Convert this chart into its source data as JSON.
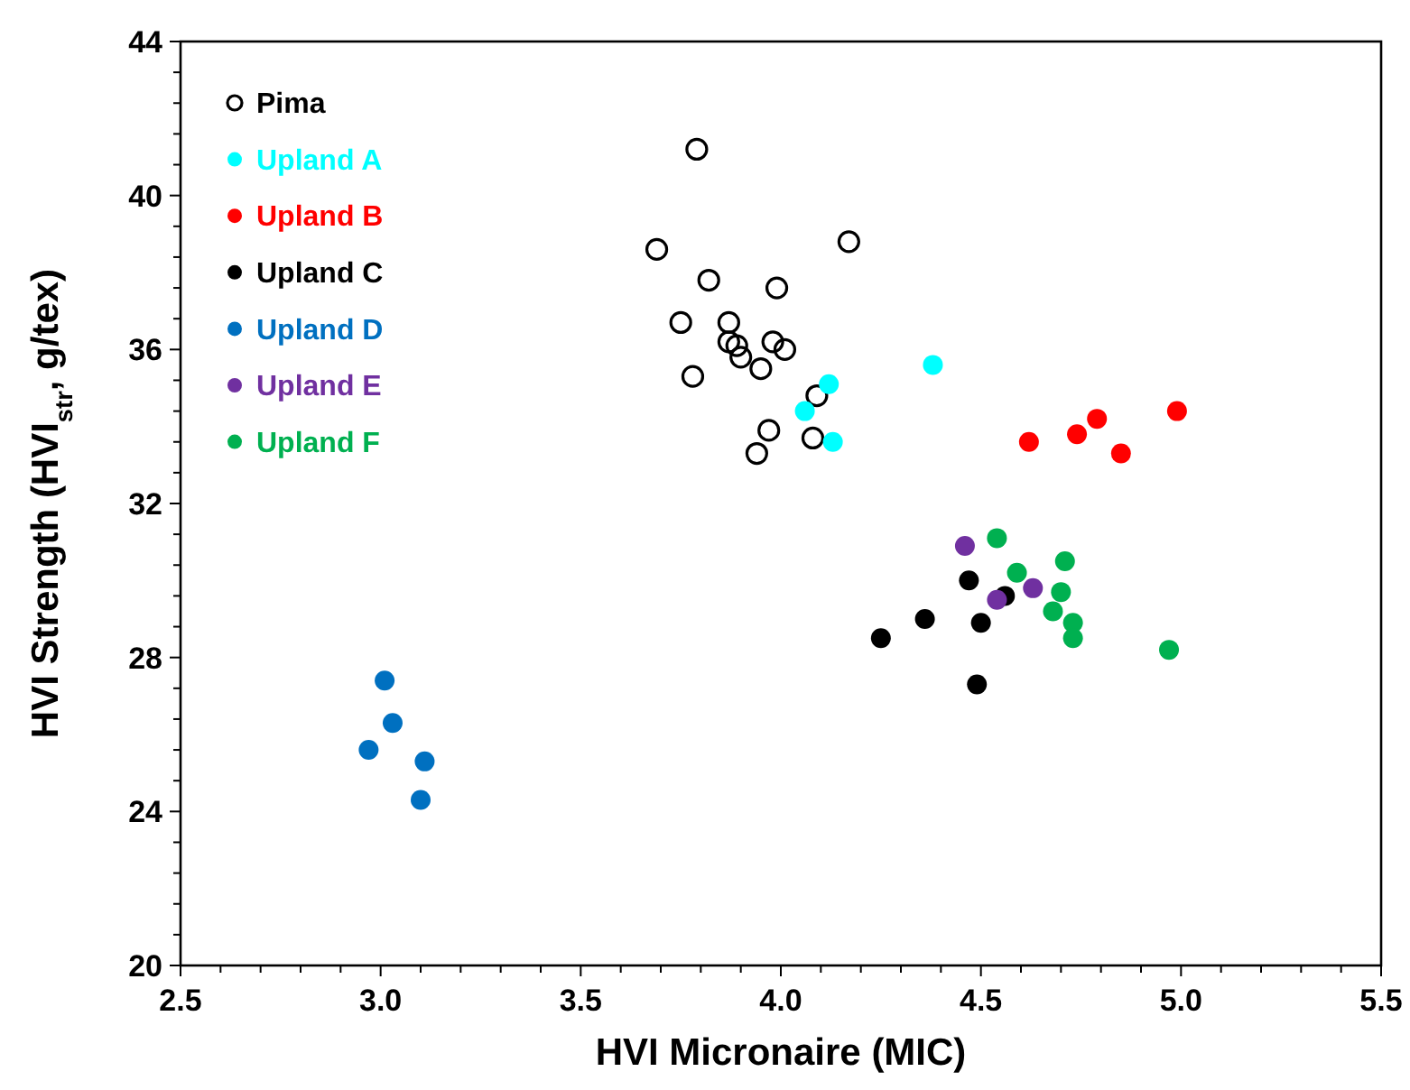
{
  "chart_data": {
    "type": "scatter",
    "xlabel": "HVI Micronaire (MIC)",
    "ylabel": "HVI Strength (HVI$_{str}$, g/tex)",
    "xlim": [
      2.5,
      5.5
    ],
    "ylim": [
      20,
      44
    ],
    "xticks": [
      {
        "value": 2.5,
        "label": "2.5"
      },
      {
        "value": 2.6,
        "label": null
      },
      {
        "value": 2.7,
        "label": null
      },
      {
        "value": 2.8,
        "label": null
      },
      {
        "value": 2.9,
        "label": null
      },
      {
        "value": 3.0,
        "label": "3.0"
      },
      {
        "value": 3.1,
        "label": null
      },
      {
        "value": 3.2,
        "label": null
      },
      {
        "value": 3.3,
        "label": null
      },
      {
        "value": 3.4,
        "label": null
      },
      {
        "value": 3.5,
        "label": "3.5"
      },
      {
        "value": 3.6,
        "label": null
      },
      {
        "value": 3.7,
        "label": null
      },
      {
        "value": 3.8,
        "label": null
      },
      {
        "value": 3.9,
        "label": null
      },
      {
        "value": 4.0,
        "label": "4.0"
      },
      {
        "value": 4.1,
        "label": null
      },
      {
        "value": 4.2,
        "label": null
      },
      {
        "value": 4.3,
        "label": null
      },
      {
        "value": 4.4,
        "label": null
      },
      {
        "value": 4.5,
        "label": "4.5"
      },
      {
        "value": 4.6,
        "label": null
      },
      {
        "value": 4.7,
        "label": null
      },
      {
        "value": 4.8,
        "label": null
      },
      {
        "value": 4.9,
        "label": null
      },
      {
        "value": 5.0,
        "label": "5.0"
      },
      {
        "value": 5.1,
        "label": null
      },
      {
        "value": 5.2,
        "label": null
      },
      {
        "value": 5.3,
        "label": null
      },
      {
        "value": 5.4,
        "label": null
      },
      {
        "value": 5.5,
        "label": "5.5"
      }
    ],
    "yticks": [
      20,
      {
        "value": 20.8,
        "label": null
      },
      {
        "value": 21.6,
        "label": null
      },
      {
        "value": 22.4,
        "label": null
      },
      {
        "value": 23.2,
        "label": null
      },
      24,
      {
        "value": 24.8,
        "label": null
      },
      {
        "value": 25.6,
        "label": null
      },
      {
        "value": 26.4,
        "label": null
      },
      {
        "value": 27.2,
        "label": null
      },
      28,
      {
        "value": 28.8,
        "label": null
      },
      {
        "value": 29.6,
        "label": null
      },
      {
        "value": 30.4,
        "label": null
      },
      {
        "value": 31.2,
        "label": null
      },
      32,
      {
        "value": 32.8,
        "label": null
      },
      {
        "value": 33.6,
        "label": null
      },
      {
        "value": 34.4,
        "label": null
      },
      {
        "value": 35.2,
        "label": null
      },
      36,
      {
        "value": 36.8,
        "label": null
      },
      {
        "value": 37.6,
        "label": null
      },
      {
        "value": 38.4,
        "label": null
      },
      {
        "value": 39.2,
        "label": null
      },
      40,
      {
        "value": 40.8,
        "label": null
      },
      {
        "value": 41.6,
        "label": null
      },
      {
        "value": 42.4,
        "label": null
      },
      {
        "value": 43.2,
        "label": null
      },
      44
    ],
    "grid": false,
    "legend": "top left",
    "marker": "circle",
    "series": [
      {
        "name": "Pima",
        "color": "#000000",
        "x": [
          3.79,
          3.69,
          4.17,
          3.82,
          3.99,
          3.75,
          3.87,
          3.87,
          3.89,
          3.9,
          3.98,
          4.01,
          3.78,
          3.95,
          4.09,
          3.97,
          4.08,
          3.94
        ],
        "values": [
          41.2,
          38.6,
          38.8,
          37.8,
          37.6,
          36.7,
          36.7,
          36.2,
          36.1,
          35.8,
          36.2,
          36.0,
          35.3,
          35.5,
          34.8,
          33.9,
          33.7,
          33.3
        ]
      },
      {
        "name": "Upland A",
        "color": "#00ffff",
        "x": [
          4.12,
          4.06,
          4.13,
          4.38
        ],
        "values": [
          35.1,
          34.4,
          33.6,
          35.6
        ]
      },
      {
        "name": "Upland B",
        "color": "#ff0000",
        "x": [
          4.62,
          4.74,
          4.79,
          4.85,
          4.99
        ],
        "values": [
          33.6,
          33.8,
          34.2,
          33.3,
          34.4
        ]
      },
      {
        "name": "Upland C",
        "color": "#000000",
        "x": [
          4.25,
          4.36,
          4.47,
          4.5,
          4.56,
          4.49
        ],
        "values": [
          28.5,
          29.0,
          30.0,
          28.9,
          29.6,
          27.3
        ]
      },
      {
        "name": "Upland D",
        "color": "#0070c0",
        "x": [
          3.01,
          3.03,
          2.97,
          3.11,
          3.1
        ],
        "values": [
          27.4,
          26.3,
          25.6,
          25.3,
          24.3
        ]
      },
      {
        "name": "Upland E",
        "color": "#7030a0",
        "x": [
          4.46,
          4.54,
          4.63
        ],
        "values": [
          30.9,
          29.5,
          29.8
        ]
      },
      {
        "name": "Upland F",
        "color": "#00b050",
        "x": [
          4.54,
          4.59,
          4.71,
          4.7,
          4.68,
          4.73,
          4.73,
          4.97
        ],
        "values": [
          31.1,
          30.2,
          30.5,
          29.7,
          29.2,
          28.9,
          28.5,
          28.2
        ]
      }
    ]
  }
}
